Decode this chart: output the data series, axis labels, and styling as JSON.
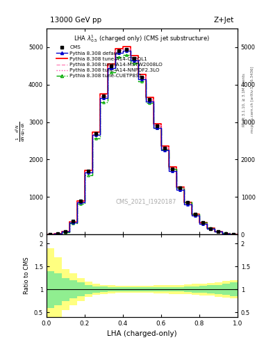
{
  "title_top": "13000 GeV pp",
  "title_right": "Z+Jet",
  "plot_title": "LHA $\\lambda^{1}_{0.5}$ (charged only) (CMS jet substructure)",
  "xlabel": "LHA (charged-only)",
  "ylabel_ratio": "Ratio to CMS",
  "watermark": "CMS_2021_I1920187",
  "right_label1": "mcplots.cern.ch [arXiv:1306.3436]",
  "right_label2": "Rivet 3.1.10, ≥ 3.1M events",
  "xlim": [
    0,
    1
  ],
  "ylim_main": [
    0,
    5500
  ],
  "ylim_ratio": [
    0.4,
    2.2
  ],
  "x_bins": [
    0.0,
    0.04,
    0.08,
    0.12,
    0.16,
    0.2,
    0.24,
    0.28,
    0.32,
    0.36,
    0.4,
    0.44,
    0.48,
    0.52,
    0.56,
    0.6,
    0.64,
    0.68,
    0.72,
    0.76,
    0.8,
    0.84,
    0.88,
    0.92,
    0.96,
    1.0
  ],
  "cms_data": [
    5,
    20,
    80,
    350,
    900,
    1700,
    2700,
    3700,
    4500,
    4900,
    4950,
    4700,
    4200,
    3600,
    2900,
    2300,
    1750,
    1250,
    850,
    540,
    310,
    160,
    75,
    28,
    8
  ],
  "pythia_default": [
    5,
    15,
    70,
    320,
    860,
    1650,
    2650,
    3650,
    4450,
    4850,
    4900,
    4650,
    4150,
    3550,
    2850,
    2250,
    1700,
    1200,
    810,
    510,
    290,
    150,
    70,
    26,
    7
  ],
  "pythia_cteq": [
    5,
    18,
    75,
    340,
    890,
    1710,
    2730,
    3750,
    4560,
    4970,
    5020,
    4770,
    4270,
    3660,
    2960,
    2360,
    1800,
    1270,
    860,
    545,
    315,
    165,
    77,
    29,
    8
  ],
  "pythia_mstw": [
    5,
    17,
    72,
    330,
    875,
    1680,
    2700,
    3700,
    4510,
    4920,
    4970,
    4720,
    4220,
    3620,
    2920,
    2320,
    1760,
    1245,
    840,
    530,
    305,
    158,
    74,
    28,
    8
  ],
  "pythia_nnpdf": [
    5,
    16,
    71,
    325,
    868,
    1665,
    2680,
    3680,
    4480,
    4895,
    4945,
    4695,
    4195,
    3595,
    2895,
    2295,
    1740,
    1230,
    830,
    525,
    300,
    156,
    73,
    27,
    7
  ],
  "pythia_cuetp": [
    5,
    14,
    65,
    300,
    820,
    1580,
    2560,
    3540,
    4330,
    4740,
    4800,
    4580,
    4090,
    3510,
    2840,
    2270,
    1740,
    1240,
    850,
    550,
    325,
    175,
    85,
    33,
    9
  ],
  "ratio_green_upper": [
    1.4,
    1.35,
    1.25,
    1.2,
    1.15,
    1.1,
    1.07,
    1.06,
    1.05,
    1.05,
    1.05,
    1.05,
    1.05,
    1.05,
    1.05,
    1.05,
    1.05,
    1.05,
    1.06,
    1.07,
    1.08,
    1.09,
    1.1,
    1.12,
    1.15
  ],
  "ratio_green_lower": [
    0.6,
    0.65,
    0.75,
    0.8,
    0.85,
    0.9,
    0.93,
    0.94,
    0.95,
    0.95,
    0.95,
    0.95,
    0.95,
    0.95,
    0.95,
    0.95,
    0.95,
    0.95,
    0.94,
    0.93,
    0.92,
    0.91,
    0.9,
    0.88,
    0.85
  ],
  "ratio_yellow_upper": [
    1.9,
    1.7,
    1.45,
    1.35,
    1.25,
    1.17,
    1.12,
    1.1,
    1.09,
    1.08,
    1.08,
    1.08,
    1.08,
    1.08,
    1.09,
    1.09,
    1.1,
    1.1,
    1.11,
    1.12,
    1.13,
    1.14,
    1.16,
    1.18,
    1.2
  ],
  "ratio_yellow_lower": [
    0.3,
    0.35,
    0.55,
    0.65,
    0.75,
    0.83,
    0.88,
    0.9,
    0.91,
    0.92,
    0.92,
    0.92,
    0.92,
    0.92,
    0.91,
    0.91,
    0.9,
    0.9,
    0.89,
    0.88,
    0.87,
    0.86,
    0.84,
    0.82,
    0.8
  ],
  "color_default": "#0000cc",
  "color_cteq": "#ff0000",
  "color_mstw": "#ff88bb",
  "color_nnpdf": "#ff44aa",
  "color_cuetp": "#00aa00",
  "color_green_band": "#90ee90",
  "color_yellow_band": "#ffff80",
  "yticks_main": [
    0,
    1000,
    2000,
    3000,
    4000,
    5000
  ],
  "ytick_labels_main": [
    "0",
    "1000",
    "2000",
    "3000",
    "4000",
    "5000"
  ],
  "yticks_ratio": [
    0.5,
    1.0,
    1.5,
    2.0
  ],
  "ytick_labels_ratio": [
    "0.5",
    "1",
    "1.5",
    "2"
  ]
}
